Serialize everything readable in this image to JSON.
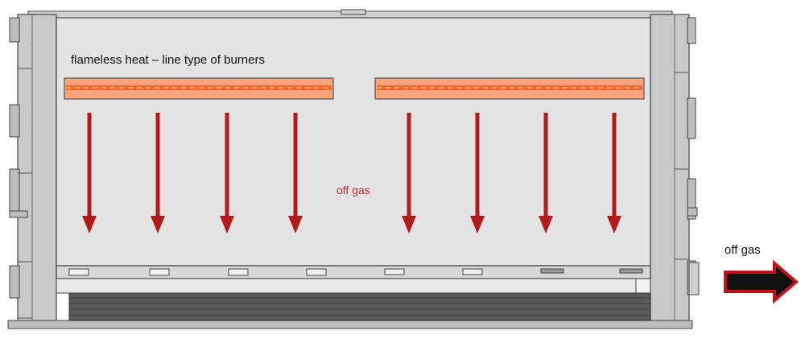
{
  "labels": {
    "burner_title": "flameless heat – line type of burners",
    "off_gas_inner": "off gas",
    "off_gas_outer": "off gas"
  },
  "burners": {
    "count": 2,
    "fill_color": "#f7a37c",
    "core_color": "#f26522",
    "frame_color": "#555555"
  },
  "flow": {
    "downward_arrow_count": 8,
    "downward_arrow_color": "#b31b1b",
    "inner_label_color": "#c0272d",
    "exhaust_arrow_fill": "#111111",
    "exhaust_arrow_outline": "#c1121f"
  },
  "furnace": {
    "wall_color": "#c9c9c9",
    "interior_color": "#e3e3e3",
    "frame_line_color": "#444444",
    "floor_color": "#5a5a5a"
  },
  "icons": {
    "down_arrow": "down-arrow-icon",
    "exhaust_arrow": "right-arrow-icon"
  }
}
